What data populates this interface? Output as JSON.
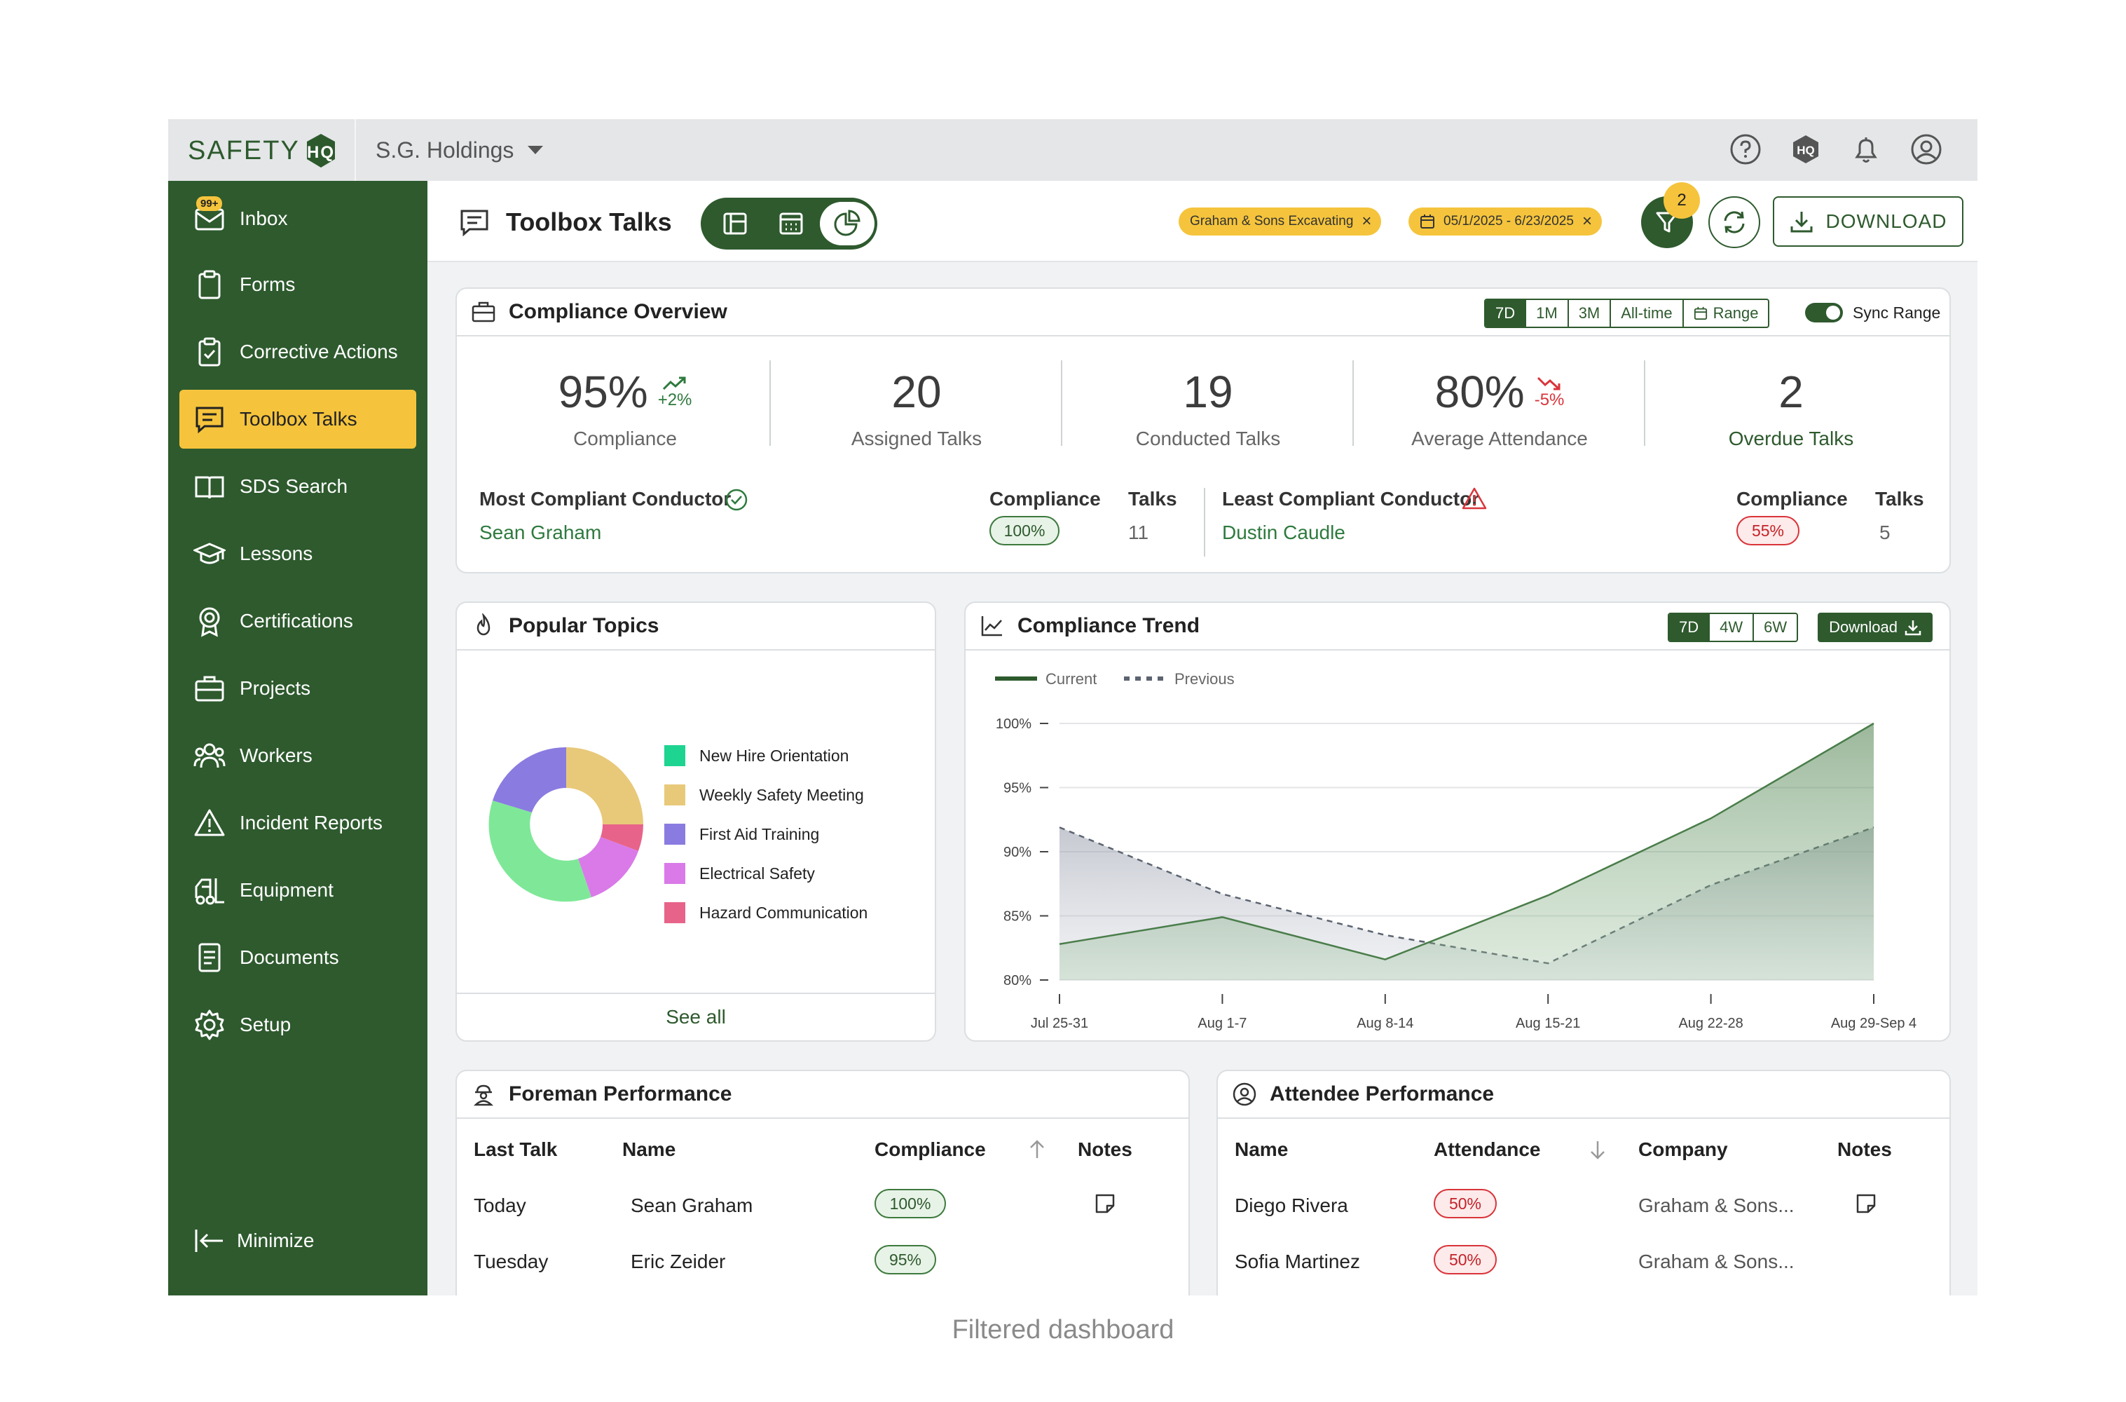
{
  "brand": {
    "logo_text": "SAFETY",
    "org_name": "S.G. Holdings"
  },
  "topbar_icons": [
    "help-icon",
    "safetyhq-icon",
    "bell-icon",
    "profile-icon"
  ],
  "sidebar": {
    "items": [
      {
        "label": "Inbox",
        "icon": "inbox-icon",
        "count": "99+"
      },
      {
        "label": "Forms",
        "icon": "clipboard-icon"
      },
      {
        "label": "Corrective Actions",
        "icon": "clipboard-check-icon"
      },
      {
        "label": "Toolbox Talks",
        "icon": "chat-icon",
        "active": true
      },
      {
        "label": "SDS Search",
        "icon": "book-icon"
      },
      {
        "label": "Lessons",
        "icon": "graduation-cap-icon"
      },
      {
        "label": "Certifications",
        "icon": "award-icon"
      },
      {
        "label": "Projects",
        "icon": "briefcase-icon"
      },
      {
        "label": "Workers",
        "icon": "users-icon"
      },
      {
        "label": "Incident Reports",
        "icon": "warning-icon"
      },
      {
        "label": "Equipment",
        "icon": "forklift-icon"
      },
      {
        "label": "Documents",
        "icon": "document-icon"
      },
      {
        "label": "Setup",
        "icon": "gear-icon"
      }
    ],
    "minimize_label": "Minimize"
  },
  "header": {
    "title": "Toolbox Talks",
    "filters": [
      "Graham & Sons Excavating",
      "05/1/2025 - 6/23/2025"
    ],
    "filter_count": "2",
    "download_label": "DOWNLOAD"
  },
  "overview": {
    "title": "Compliance Overview",
    "ranges": [
      "7D",
      "1M",
      "3M",
      "All-time",
      "Range"
    ],
    "selected_range": "7D",
    "sync_label": "Sync Range",
    "kpis": [
      {
        "value": "95%",
        "delta": "+2%",
        "trend": "up",
        "label": "Compliance"
      },
      {
        "value": "20",
        "label": "Assigned Talks"
      },
      {
        "value": "19",
        "label": "Conducted Talks"
      },
      {
        "value": "80%",
        "delta": "-5%",
        "trend": "down",
        "label": "Average Attendance"
      },
      {
        "value": "2",
        "label": "Overdue Talks"
      }
    ],
    "most": {
      "title": "Most Compliant Conductor",
      "name": "Sean Graham",
      "compliance_label": "Compliance",
      "compliance": "100%",
      "talks_label": "Talks",
      "talks": "11"
    },
    "least": {
      "title": "Least Compliant Conductor",
      "name": "Dustin Caudle",
      "compliance_label": "Compliance",
      "compliance": "55%",
      "talks_label": "Talks",
      "talks": "5"
    }
  },
  "popular_topics": {
    "title": "Popular Topics",
    "see_all": "See all",
    "topics": [
      {
        "name": "New Hire Orientation",
        "color": "#1ed491"
      },
      {
        "name": "Weekly Safety Meeting",
        "color": "#e8c97a"
      },
      {
        "name": "First Aid Training",
        "color": "#8a7be0"
      },
      {
        "name": "Electrical Safety",
        "color": "#d97ae8"
      },
      {
        "name": "Hazard Communication",
        "color": "#e8638a"
      }
    ]
  },
  "chart_data": {
    "type": "area",
    "title": "Compliance Trend",
    "categories": [
      "Jul 25-31",
      "Aug 1-7",
      "Aug 8-14",
      "Aug 15-21",
      "Aug 22-28",
      "Aug 29-Sep 4"
    ],
    "series": [
      {
        "name": "Current",
        "values": [
          82.8,
          84.9,
          81.6,
          86.6,
          92.6,
          100
        ],
        "color": "#4a7d4a"
      },
      {
        "name": "Previous",
        "values": [
          91.9,
          86.7,
          83.5,
          81.3,
          87.4,
          91.9
        ],
        "color": "#5c6470"
      }
    ],
    "yticks": [
      "100%",
      "95%",
      "90%",
      "85%",
      "80%"
    ],
    "ylim": [
      80,
      100
    ],
    "grid": true,
    "legend": "top-left",
    "ranges": [
      "7D",
      "4W",
      "6W"
    ],
    "selected_range": "7D",
    "download_label": "Download"
  },
  "foreman": {
    "title": "Foreman Performance",
    "columns": [
      "Last Talk",
      "Name",
      "Compliance",
      "Notes"
    ],
    "rows": [
      {
        "last": "Today",
        "name": "Sean Graham",
        "compliance": "100%"
      },
      {
        "last": "Tuesday",
        "name": "Eric Zeider",
        "compliance": "95%"
      }
    ]
  },
  "attendee": {
    "title": "Attendee Performance",
    "columns": [
      "Name",
      "Attendance",
      "Company",
      "Notes"
    ],
    "rows": [
      {
        "name": "Diego Rivera",
        "attendance": "50%",
        "company": "Graham & Sons..."
      },
      {
        "name": "Sofia Martinez",
        "attendance": "50%",
        "company": "Graham & Sons..."
      }
    ]
  },
  "caption": "Filtered dashboard"
}
